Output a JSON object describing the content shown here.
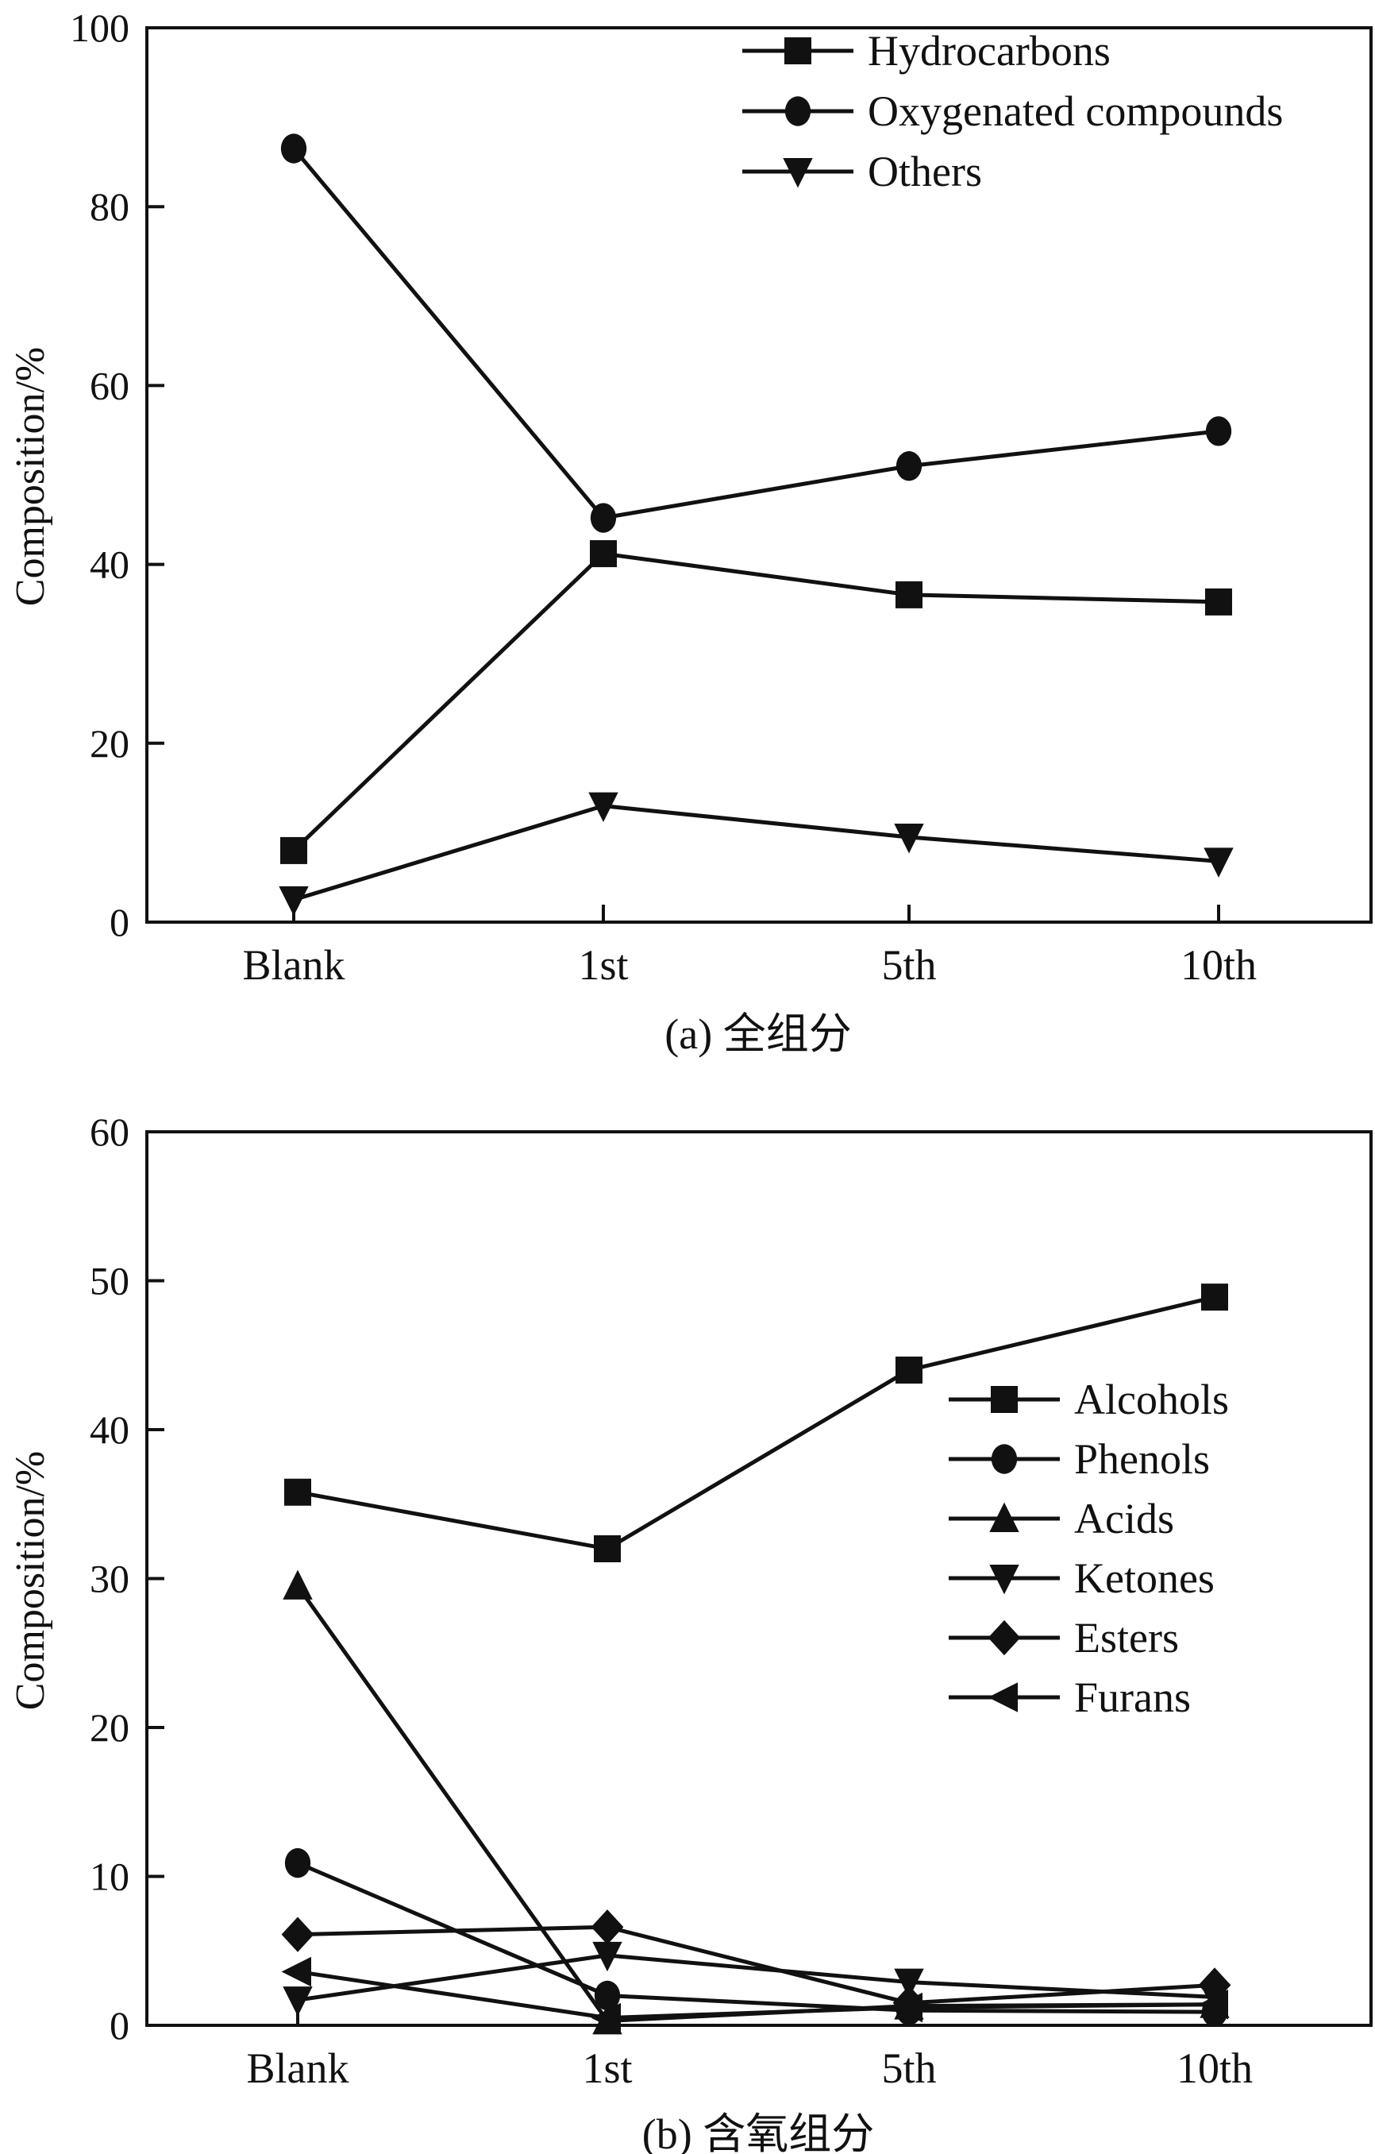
{
  "chart_data": [
    {
      "type": "line",
      "title": "",
      "caption": "(a) 全组分",
      "xlabel": "",
      "ylabel": "Composition/%",
      "categories": [
        "Blank",
        "1st",
        "5th",
        "10th"
      ],
      "ylim": [
        0,
        100
      ],
      "yticks": [
        0,
        20,
        40,
        60,
        80,
        100
      ],
      "grid": false,
      "legend_position": "top-right",
      "series": [
        {
          "name": "Hydrocarbons",
          "marker": "square",
          "values": [
            8.0,
            41.2,
            36.6,
            35.8
          ]
        },
        {
          "name": "Oxygenated compounds",
          "marker": "circle",
          "values": [
            86.5,
            45.2,
            51.0,
            54.9
          ]
        },
        {
          "name": "Others",
          "marker": "triangle-down",
          "values": [
            2.5,
            13.0,
            9.5,
            6.8
          ]
        }
      ]
    },
    {
      "type": "line",
      "title": "",
      "caption": "(b) 含氧组分",
      "xlabel": "",
      "ylabel": "Composition/%",
      "categories": [
        "Blank",
        "1st",
        "5th",
        "10th"
      ],
      "ylim": [
        0,
        60
      ],
      "yticks": [
        0,
        10,
        20,
        30,
        40,
        50,
        60
      ],
      "grid": false,
      "legend_position": "center-right",
      "series": [
        {
          "name": "Alcohols",
          "marker": "square",
          "values": [
            35.8,
            32.0,
            44.0,
            48.9
          ]
        },
        {
          "name": "Phenols",
          "marker": "circle",
          "values": [
            10.9,
            2.0,
            1.0,
            0.9
          ]
        },
        {
          "name": "Acids",
          "marker": "triangle-up",
          "values": [
            29.5,
            0.3,
            1.3,
            1.4
          ]
        },
        {
          "name": "Ketones",
          "marker": "triangle-down",
          "values": [
            1.7,
            4.7,
            2.9,
            1.9
          ]
        },
        {
          "name": "Esters",
          "marker": "diamond",
          "values": [
            6.1,
            6.6,
            1.5,
            2.7
          ]
        },
        {
          "name": "Furans",
          "marker": "triangle-left",
          "values": [
            3.6,
            0.5,
            1.2,
            1.4
          ]
        }
      ]
    }
  ]
}
